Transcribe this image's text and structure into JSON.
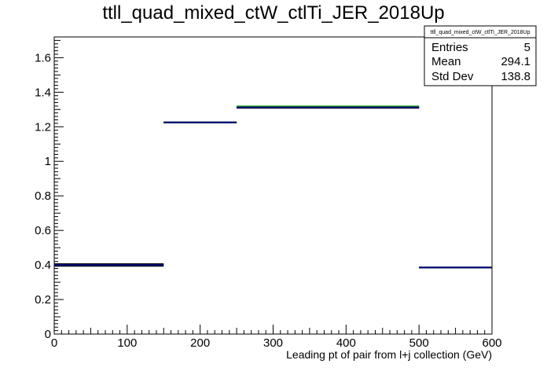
{
  "chart_data": {
    "type": "histogram",
    "title": "ttll_quad_mixed_ctW_ctlTi_JER_2018Up",
    "xlabel": "Leading pt of pair from l+j collection (GeV)",
    "ylabel": "",
    "xlim": [
      0,
      600
    ],
    "ylim": [
      0,
      1.72
    ],
    "x_ticks": [
      "0",
      "100",
      "200",
      "300",
      "400",
      "500",
      "600"
    ],
    "y_ticks": [
      "0",
      "0.2",
      "0.4",
      "0.6",
      "0.8",
      "1",
      "1.2",
      "1.4",
      "1.6"
    ],
    "bin_edges": [
      0,
      150,
      250,
      500,
      600
    ],
    "series": [
      {
        "color": "#000000",
        "values": [
          0.405,
          1.225,
          1.31,
          0.385
        ]
      },
      {
        "color": "#000000",
        "values": [
          0.395,
          1.225,
          1.31,
          0.385
        ]
      },
      {
        "color": "#00a000",
        "values": [
          0.4,
          1.225,
          1.318,
          0.385
        ]
      },
      {
        "color": "#000080",
        "values": [
          0.4,
          1.225,
          1.312,
          0.385
        ]
      }
    ],
    "stats_box": {
      "title": "ttll_quad_mixed_ctW_ctlTi_JER_2018Up",
      "rows": [
        {
          "label": "Entries",
          "value": "5"
        },
        {
          "label": "Mean",
          "value": "294.1"
        },
        {
          "label": "Std Dev",
          "value": "138.8"
        }
      ]
    }
  }
}
